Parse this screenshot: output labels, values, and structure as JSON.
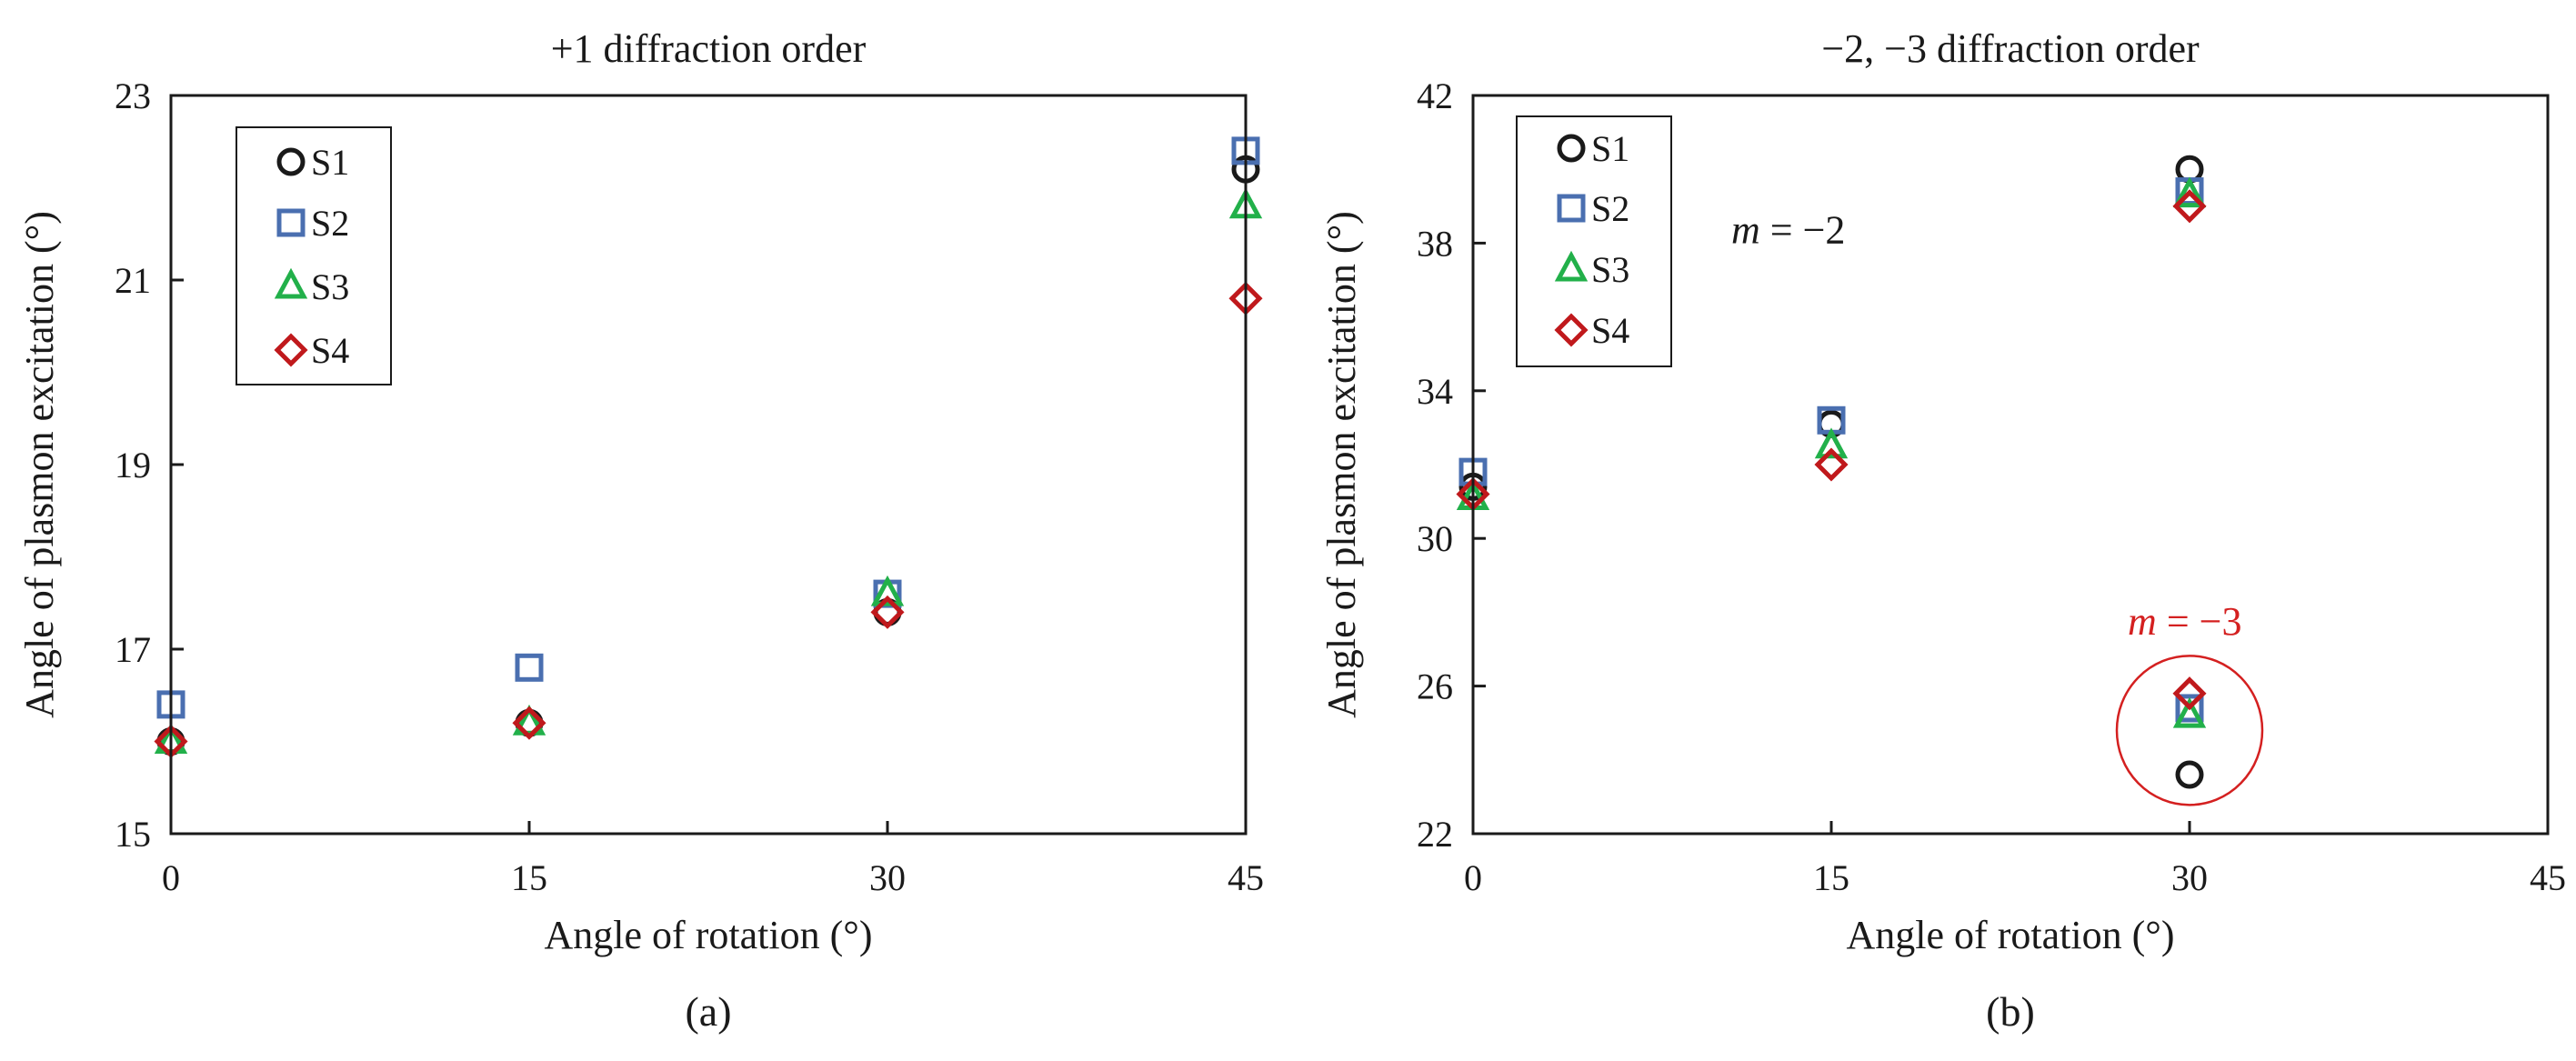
{
  "figure": {
    "panels": [
      {
        "caption": "(a)"
      },
      {
        "caption": "(b)"
      }
    ]
  },
  "chart_data": [
    {
      "type": "scatter",
      "title": "+1 diffraction order",
      "xlabel": "Angle of rotation (°)",
      "ylabel": "Angle of plasmon excitation (°)",
      "xlim": [
        0,
        45
      ],
      "ylim": [
        15,
        23
      ],
      "xticks": [
        0,
        15,
        30,
        45
      ],
      "yticks": [
        15,
        17,
        19,
        21,
        23
      ],
      "grid": false,
      "legend_position": "top-left",
      "series": [
        {
          "name": "S1",
          "marker": "circle",
          "color": "#1a1a1a",
          "x": [
            0,
            15,
            30,
            45
          ],
          "y": [
            16.0,
            16.2,
            17.4,
            22.2
          ]
        },
        {
          "name": "S2",
          "marker": "square",
          "color": "#4a6fb0",
          "x": [
            0,
            15,
            30,
            45
          ],
          "y": [
            16.4,
            16.8,
            17.6,
            22.4
          ]
        },
        {
          "name": "S3",
          "marker": "triangle",
          "color": "#22b04a",
          "x": [
            0,
            15,
            30,
            45
          ],
          "y": [
            16.0,
            16.2,
            17.6,
            21.8
          ]
        },
        {
          "name": "S4",
          "marker": "diamond",
          "color": "#c0191c",
          "x": [
            0,
            15,
            30,
            45
          ],
          "y": [
            16.0,
            16.2,
            17.4,
            20.8
          ]
        }
      ],
      "annotations": []
    },
    {
      "type": "scatter",
      "title": "−2, −3 diffraction order",
      "xlabel": "Angle of rotation (°)",
      "ylabel": "Angle of plasmon excitation (°)",
      "xlim": [
        0,
        45
      ],
      "ylim": [
        22,
        42
      ],
      "xticks": [
        0,
        15,
        30,
        45
      ],
      "yticks": [
        22,
        26,
        30,
        34,
        38,
        42
      ],
      "grid": false,
      "legend_position": "top-left",
      "series": [
        {
          "name": "S1",
          "marker": "circle",
          "color": "#1a1a1a",
          "x": [
            0,
            15,
            30,
            30
          ],
          "y": [
            31.4,
            33.1,
            40.0,
            23.6
          ]
        },
        {
          "name": "S2",
          "marker": "square",
          "color": "#4a6fb0",
          "x": [
            0,
            15,
            30,
            30
          ],
          "y": [
            31.8,
            33.2,
            39.4,
            25.4
          ]
        },
        {
          "name": "S3",
          "marker": "triangle",
          "color": "#22b04a",
          "x": [
            0,
            15,
            30,
            30
          ],
          "y": [
            31.1,
            32.5,
            39.3,
            25.2
          ]
        },
        {
          "name": "S4",
          "marker": "diamond",
          "color": "#c0191c",
          "x": [
            0,
            15,
            30,
            30
          ],
          "y": [
            31.2,
            32.0,
            39.0,
            25.8
          ]
        }
      ],
      "annotations": [
        {
          "text": "m = −2",
          "italic_part": "m",
          "rest": " = −2",
          "color": "#1a1a1a",
          "x": 13.2,
          "y": 38.0
        },
        {
          "text": "m = −3",
          "italic_part": "m",
          "rest": " = −3",
          "color": "#d42020",
          "x": 29.8,
          "y": 27.4
        }
      ],
      "highlight": {
        "shape": "circle",
        "color": "#d42020",
        "cx": 30,
        "cy": 24.8
      }
    }
  ]
}
